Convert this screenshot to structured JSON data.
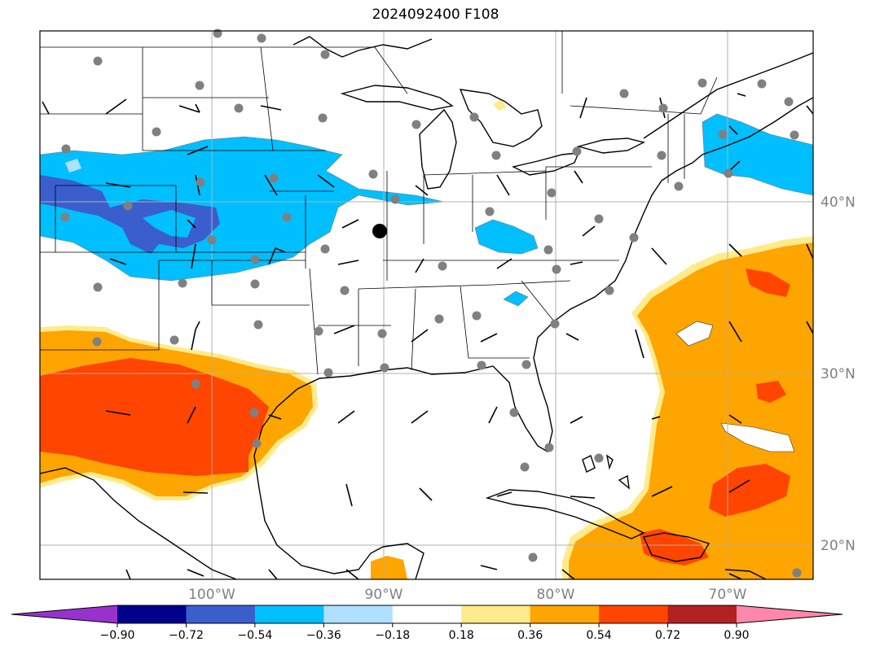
{
  "title": "2024092400 F108",
  "map": {
    "projection": "lat-lon",
    "lon_range": [
      -110,
      -65
    ],
    "lat_range": [
      18,
      50
    ],
    "gridlines": true,
    "lon_labels": [
      "100°W",
      "90°W",
      "80°W",
      "70°W"
    ],
    "lat_labels": [
      "40°N",
      "30°N",
      "20°N"
    ],
    "marker": {
      "lon": -89.6,
      "lat": 38.2,
      "color": "#000000"
    },
    "station_color": "#808080"
  },
  "colorbar": {
    "colors": [
      "#9932cc",
      "#00008b",
      "#3a5fcd",
      "#00bfff",
      "#b0e0ff",
      "#ffffff",
      "#ffeb8b",
      "#ffa500",
      "#ff4500",
      "#b22222",
      "#ff88aa"
    ],
    "ticks": [
      "−0.90",
      "−0.72",
      "−0.54",
      "−0.36",
      "−0.18",
      "0.18",
      "0.36",
      "0.54",
      "0.72",
      "0.90"
    ],
    "extend": "both"
  }
}
